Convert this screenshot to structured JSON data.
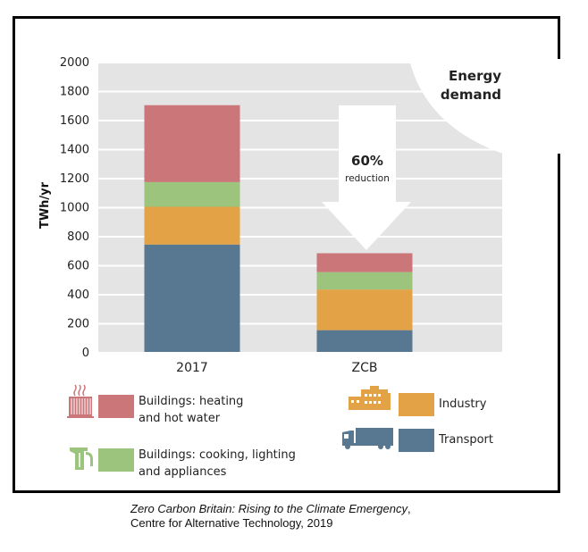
{
  "chart_data": {
    "type": "bar",
    "stacked": true,
    "title": "Energy demand",
    "xlabel": "",
    "ylabel": "TWh/yr",
    "ylim": [
      0,
      2000
    ],
    "yticks": [
      0,
      200,
      400,
      600,
      800,
      1000,
      1200,
      1400,
      1600,
      1800,
      2000
    ],
    "categories": [
      "2017",
      "ZCB"
    ],
    "series": [
      {
        "name": "Transport",
        "color": "#587790",
        "values": [
          740,
          150
        ]
      },
      {
        "name": "Industry",
        "color": "#e3a245",
        "values": [
          260,
          280
        ]
      },
      {
        "name": "Buildings: cooking, lighting and appliances",
        "color": "#9cc47c",
        "values": [
          170,
          120
        ]
      },
      {
        "name": "Buildings: heating and hot water",
        "color": "#cb7679",
        "values": [
          530,
          130
        ]
      }
    ],
    "annotation": {
      "value": "60%",
      "label": "reduction"
    },
    "grid": true,
    "legend_position": "bottom"
  },
  "heading": {
    "line1": "Energy",
    "line2": "demand"
  },
  "legend": [
    {
      "line1": "Buildings: heating",
      "line2": "and hot water",
      "icon": "radiator-icon",
      "color": "#cb7679"
    },
    {
      "line1": "Buildings: cooking, lighting",
      "line2": "and appliances",
      "icon": "kettle-icon",
      "color": "#9cc47c"
    },
    {
      "line1": "Industry",
      "icon": "factory-icon",
      "color": "#e3a245"
    },
    {
      "line1": "Transport",
      "icon": "truck-icon",
      "color": "#587790"
    }
  ],
  "caption": {
    "title": "Zero Carbon Britain: Rising to the Climate Emergency",
    "sep": ",",
    "line2": "Centre for Alternative Technology, 2019"
  },
  "colors": {
    "grid_band": "#e4e4e4",
    "frame": "#000000"
  }
}
